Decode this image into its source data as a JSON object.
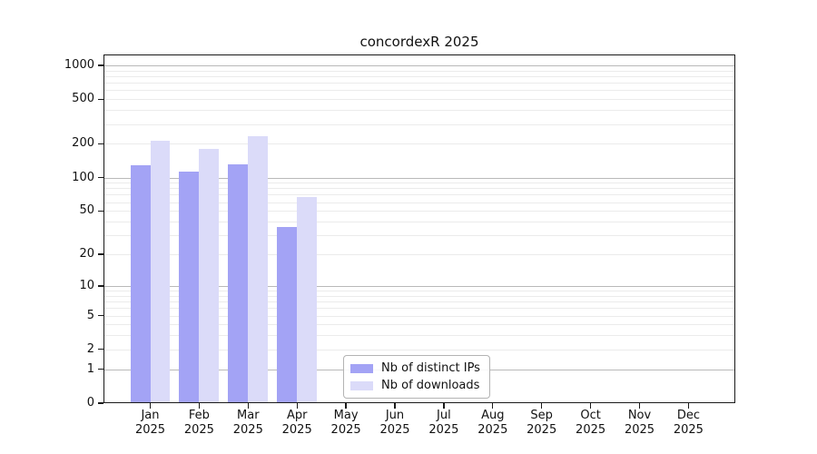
{
  "chart_data": {
    "type": "bar",
    "title": "concordexR 2025",
    "months": [
      "Jan",
      "Feb",
      "Mar",
      "Apr",
      "May",
      "Jun",
      "Jul",
      "Aug",
      "Sep",
      "Oct",
      "Nov",
      "Dec"
    ],
    "year_label": "2025",
    "categories": [
      "Jan 2025",
      "Feb 2025",
      "Mar 2025",
      "Apr 2025",
      "May 2025",
      "Jun 2025",
      "Jul 2025",
      "Aug 2025",
      "Sep 2025",
      "Oct 2025",
      "Nov 2025",
      "Dec 2025"
    ],
    "series": [
      {
        "name": "Nb of distinct IPs",
        "color": "#a3a3f5",
        "values": [
          130,
          114,
          131,
          36,
          null,
          null,
          null,
          null,
          null,
          null,
          null,
          null
        ]
      },
      {
        "name": "Nb of downloads",
        "color": "#dbdbf9",
        "values": [
          212,
          179,
          234,
          67,
          null,
          null,
          null,
          null,
          null,
          null,
          null,
          null
        ]
      }
    ],
    "y_ticks": [
      0,
      1,
      2,
      5,
      10,
      20,
      50,
      100,
      200,
      500,
      1000
    ],
    "y_major_gridlines": [
      1,
      10,
      100,
      1000
    ],
    "y_minor_gridline_mantissas": [
      2,
      3,
      4,
      5,
      6,
      7,
      8,
      9
    ],
    "y_scale": "log10(value+1)",
    "ylim": [
      0,
      1230
    ],
    "grid": "horizontal major and minor",
    "legend_position": "inside lower-center"
  }
}
